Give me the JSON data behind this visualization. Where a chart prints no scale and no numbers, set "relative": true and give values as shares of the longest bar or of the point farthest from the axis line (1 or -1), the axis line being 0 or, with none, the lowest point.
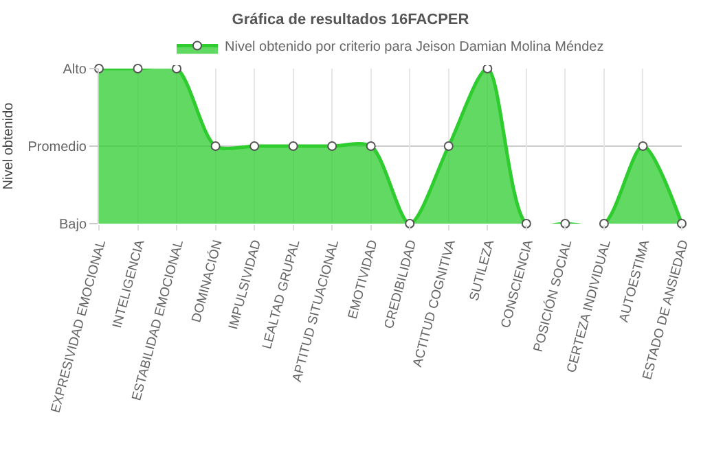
{
  "chart_data": {
    "type": "area",
    "title": "Gráfica de resultados 16FACPER",
    "ylabel": "Nivel obtenido",
    "categories": [
      "EXPRESIVIDAD EMOCIONAL",
      "INTELIGENCIA",
      "ESTABILIDAD EMOCIONAL",
      "DOMINACIÓN",
      "IMPULSIVIDAD",
      "LEALTAD GRUPAL",
      "APTITUD SITUACIONAL",
      "EMOTIVIDAD",
      "CREDIBILIDAD",
      "ACTITUD COGNITIVA",
      "SUTILEZA",
      "CONSCIENCIA",
      "POSICIÓN SOCIAL",
      "CERTEZA INDIVIDUAL",
      "AUTOESTIMA",
      "ESTADO DE ANSIEDAD"
    ],
    "series": [
      {
        "name": "Nivel obtenido por criterio para Jeison Damian Molina Méndez",
        "color": "#2ecc2e",
        "values": [
          1,
          1,
          1,
          0.5,
          0.5,
          0.5,
          0.5,
          0.5,
          0,
          0.5,
          1,
          0,
          0,
          0,
          0.5,
          0
        ]
      }
    ],
    "relative": true,
    "annotations": [
      "Bajo",
      "Promedio",
      "Alto"
    ],
    "ref_lines": [
      {
        "axis": "y",
        "value": 0.5,
        "color": "#cccccc"
      }
    ],
    "grid": "x",
    "legend": "top",
    "marker": "circle",
    "line_style": "solid"
  }
}
